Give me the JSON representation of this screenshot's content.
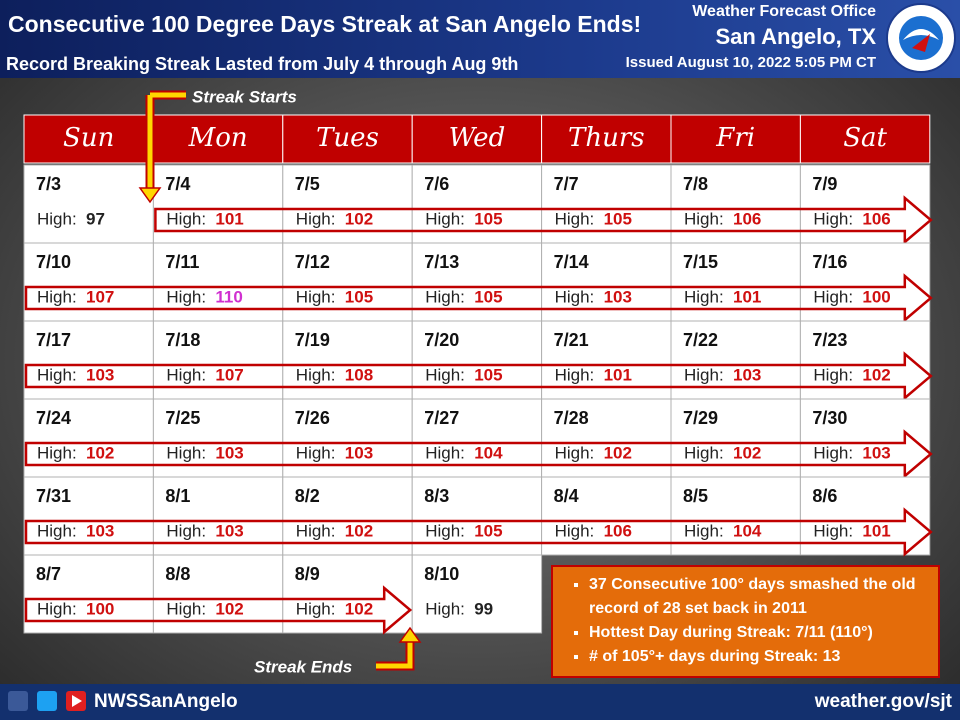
{
  "header": {
    "title": "Consecutive 100 Degree Days Streak at San Angelo Ends!",
    "subtitle": "Record Breaking Streak Lasted from July 4 through Aug 9th",
    "office": "Weather Forecast Office",
    "location": "San Angelo, TX",
    "issued": "Issued August 10, 2022 5:05 PM CT"
  },
  "calendar": {
    "weekdays": [
      "Sun",
      "Mon",
      "Tues",
      "Wed",
      "Thurs",
      "Fri",
      "Sat"
    ],
    "high_label": "High:",
    "weeks": [
      [
        {
          "date": "7/3",
          "high": 97,
          "color": "#222222"
        },
        {
          "date": "7/4",
          "high": 101,
          "color": "#d01010"
        },
        {
          "date": "7/5",
          "high": 102,
          "color": "#d01010"
        },
        {
          "date": "7/6",
          "high": 105,
          "color": "#d01010"
        },
        {
          "date": "7/7",
          "high": 105,
          "color": "#d01010"
        },
        {
          "date": "7/8",
          "high": 106,
          "color": "#d01010"
        },
        {
          "date": "7/9",
          "high": 106,
          "color": "#d01010"
        }
      ],
      [
        {
          "date": "7/10",
          "high": 107,
          "color": "#d01010"
        },
        {
          "date": "7/11",
          "high": 110,
          "color": "#d030d0"
        },
        {
          "date": "7/12",
          "high": 105,
          "color": "#d01010"
        },
        {
          "date": "7/13",
          "high": 105,
          "color": "#d01010"
        },
        {
          "date": "7/14",
          "high": 103,
          "color": "#d01010"
        },
        {
          "date": "7/15",
          "high": 101,
          "color": "#d01010"
        },
        {
          "date": "7/16",
          "high": 100,
          "color": "#d01010"
        }
      ],
      [
        {
          "date": "7/17",
          "high": 103,
          "color": "#d01010"
        },
        {
          "date": "7/18",
          "high": 107,
          "color": "#d01010"
        },
        {
          "date": "7/19",
          "high": 108,
          "color": "#d01010"
        },
        {
          "date": "7/20",
          "high": 105,
          "color": "#d01010"
        },
        {
          "date": "7/21",
          "high": 101,
          "color": "#d01010"
        },
        {
          "date": "7/22",
          "high": 103,
          "color": "#d01010"
        },
        {
          "date": "7/23",
          "high": 102,
          "color": "#d01010"
        }
      ],
      [
        {
          "date": "7/24",
          "high": 102,
          "color": "#d01010"
        },
        {
          "date": "7/25",
          "high": 103,
          "color": "#d01010"
        },
        {
          "date": "7/26",
          "high": 103,
          "color": "#d01010"
        },
        {
          "date": "7/27",
          "high": 104,
          "color": "#d01010"
        },
        {
          "date": "7/28",
          "high": 102,
          "color": "#d01010"
        },
        {
          "date": "7/29",
          "high": 102,
          "color": "#d01010"
        },
        {
          "date": "7/30",
          "high": 103,
          "color": "#d01010"
        }
      ],
      [
        {
          "date": "7/31",
          "high": 103,
          "color": "#d01010"
        },
        {
          "date": "8/1",
          "high": 103,
          "color": "#d01010"
        },
        {
          "date": "8/2",
          "high": 102,
          "color": "#d01010"
        },
        {
          "date": "8/3",
          "high": 105,
          "color": "#d01010"
        },
        {
          "date": "8/4",
          "high": 106,
          "color": "#d01010"
        },
        {
          "date": "8/5",
          "high": 104,
          "color": "#d01010"
        },
        {
          "date": "8/6",
          "high": 101,
          "color": "#d01010"
        }
      ],
      [
        {
          "date": "8/7",
          "high": 100,
          "color": "#d01010"
        },
        {
          "date": "8/8",
          "high": 102,
          "color": "#d01010"
        },
        {
          "date": "8/9",
          "high": 102,
          "color": "#d01010"
        },
        {
          "date": "8/10",
          "high": 99,
          "color": "#222222"
        }
      ]
    ]
  },
  "annotations": {
    "start": "Streak Starts",
    "end": "Streak Ends"
  },
  "notes": [
    "37 Consecutive 100° days smashed the old record of 28 set back in 2011",
    "Hottest Day during Streak: 7/11 (110°)",
    "# of 105°+ days during Streak: 13"
  ],
  "footer": {
    "handle": "NWSSanAngelo",
    "url": "weather.gov/sjt"
  }
}
